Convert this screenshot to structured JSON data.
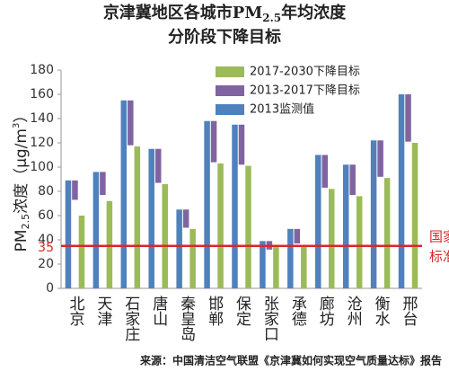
{
  "chart_data": {
    "type": "bar",
    "title_parts": [
      "京津冀地区各城市PM",
      "2.5",
      "年均浓度"
    ],
    "subtitle": "分阶段下降目标",
    "y_label_parts": [
      "PM",
      "2.5",
      "浓度（μg/m",
      "3",
      "）"
    ],
    "categories": [
      "北京",
      "天津",
      "石家庄",
      "唐山",
      "秦皇岛",
      "邯郸",
      "保定",
      "张家口",
      "承德",
      "廊坊",
      "沧州",
      "衡水",
      "邢台"
    ],
    "series": [
      {
        "name": "2013监测值",
        "color": "#4f81bd",
        "values": [
          89,
          96,
          155,
          115,
          65,
          138,
          135,
          39,
          49,
          110,
          102,
          122,
          160
        ]
      },
      {
        "name": "2013-2017下降目标",
        "color": "#8064a2",
        "values": [
          16,
          19,
          37,
          28,
          15,
          34,
          33,
          7,
          12,
          27,
          25,
          30,
          39
        ]
      },
      {
        "name": "2017-2030下降目标",
        "color": "#9bbb59",
        "values": [
          60,
          72,
          117,
          86,
          49,
          103,
          101,
          34,
          35,
          82,
          76,
          91,
          120
        ]
      }
    ],
    "ylim": [
      0,
      180
    ],
    "yticks": [
      0,
      20,
      40,
      60,
      80,
      100,
      120,
      140,
      160,
      180
    ],
    "standard": {
      "value": 35,
      "label_lines": [
        "国家",
        "标准"
      ],
      "color": "#d42a2a"
    },
    "grid": false,
    "source": "来源：中国清洁空气联盟《京津冀如何实现空气质量达标》报告"
  }
}
